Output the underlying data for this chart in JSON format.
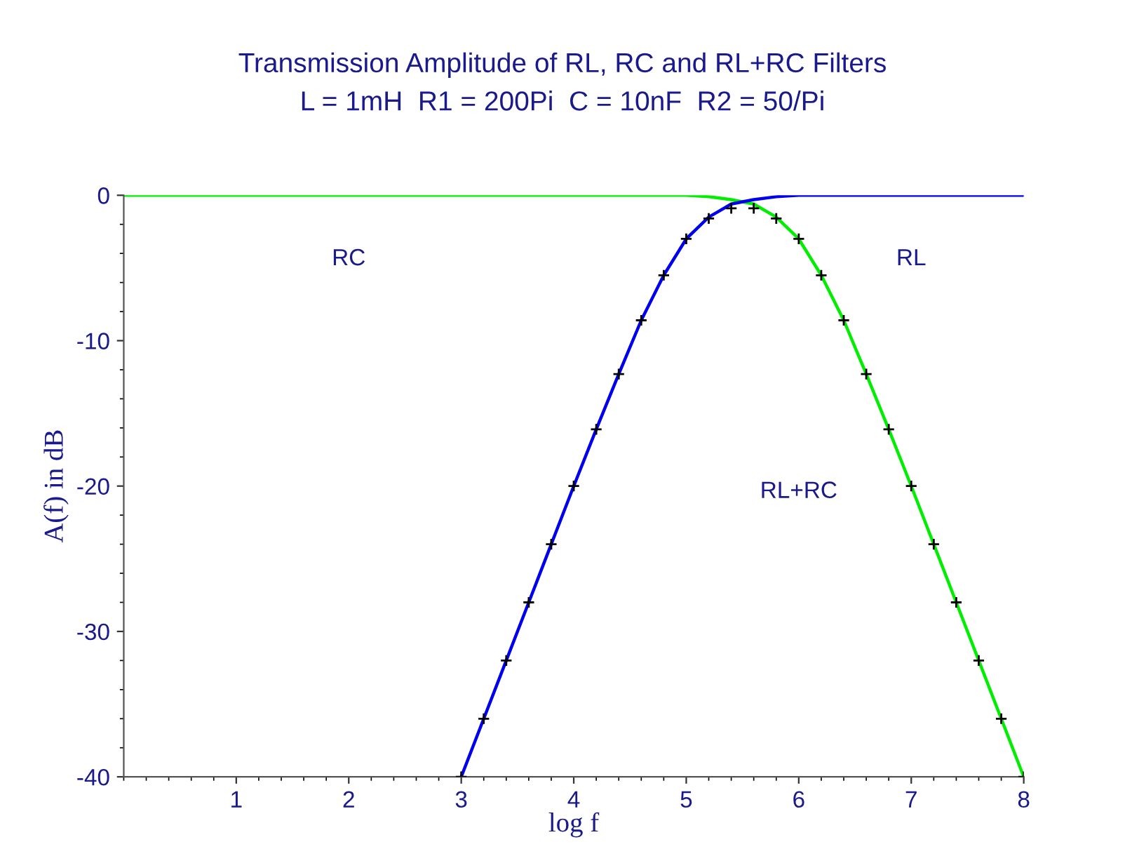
{
  "chart_data": {
    "type": "line",
    "title": "Transmission Amplitude of RL, RC and RL+RC Filters",
    "subtitle": "L = 1mH  R1 = 200Pi  C = 10nF  R2 = 50/Pi",
    "xlabel": "log f",
    "ylabel": "A(f) in dB",
    "xlim": [
      0,
      8
    ],
    "ylim": [
      -40,
      0
    ],
    "xticks": [
      1,
      2,
      3,
      4,
      5,
      6,
      7,
      8
    ],
    "yticks": [
      -40,
      -30,
      -20,
      -10,
      0
    ],
    "grid": false,
    "legend": false,
    "series": [
      {
        "name": "RC",
        "color": "#00ee00",
        "x": [
          0,
          1,
          2,
          3,
          4,
          4.5,
          4.8,
          5.0,
          5.2,
          5.4,
          5.6,
          5.8,
          6.0,
          6.2,
          6.4,
          6.6,
          6.8,
          7.0,
          7.2,
          7.4,
          7.6,
          7.8,
          8.0
        ],
        "values": [
          0,
          0,
          0,
          0,
          0,
          0,
          0,
          0,
          -0.1,
          -0.3,
          -0.6,
          -1.5,
          -3.0,
          -5.5,
          -8.6,
          -12.3,
          -16.1,
          -20.0,
          -24.0,
          -28.0,
          -32.0,
          -36.0,
          -40.0
        ]
      },
      {
        "name": "RL",
        "color": "#0000ee",
        "x": [
          3.0,
          3.2,
          3.4,
          3.6,
          3.8,
          4.0,
          4.2,
          4.4,
          4.6,
          4.8,
          5.0,
          5.2,
          5.4,
          5.6,
          5.8,
          6.0,
          6.5,
          7.0,
          8.0
        ],
        "values": [
          -40.0,
          -36.0,
          -32.0,
          -28.0,
          -24.0,
          -20.0,
          -16.1,
          -12.3,
          -8.6,
          -5.5,
          -3.0,
          -1.5,
          -0.6,
          -0.3,
          -0.1,
          0,
          0,
          0,
          0
        ]
      },
      {
        "name": "RL+RC",
        "type": "scatter",
        "marker": "cross",
        "color": "#000000",
        "x": [
          3.0,
          3.2,
          3.4,
          3.6,
          3.8,
          4.0,
          4.2,
          4.4,
          4.6,
          4.8,
          5.0,
          5.2,
          5.4,
          5.6,
          5.8,
          6.0,
          6.2,
          6.4,
          6.6,
          6.8,
          7.0,
          7.2,
          7.4,
          7.6,
          7.8,
          8.0
        ],
        "values": [
          -40.0,
          -36.0,
          -32.0,
          -28.0,
          -24.0,
          -20.0,
          -16.1,
          -12.3,
          -8.6,
          -5.5,
          -3.0,
          -1.6,
          -0.9,
          -0.9,
          -1.6,
          -3.0,
          -5.5,
          -8.6,
          -12.3,
          -16.1,
          -20.0,
          -24.0,
          -28.0,
          -32.0,
          -36.0,
          -40.0
        ]
      }
    ]
  }
}
